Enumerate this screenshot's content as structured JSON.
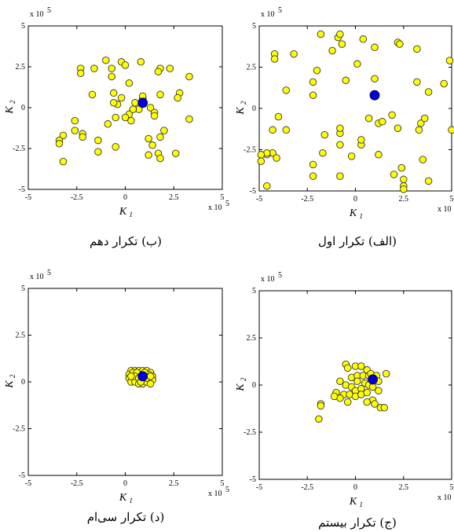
{
  "chart_data": [
    {
      "type": "scatter",
      "caption": "(الف) تکرار اول",
      "xlabel": "K",
      "xlabel_sub": "1",
      "ylabel": "K",
      "ylabel_sub": "2",
      "x_exponent_label": "x 10",
      "x_exponent_power": "5",
      "y_exponent_label": "x 10",
      "y_exponent_power": "5",
      "xlim": [
        -5,
        5
      ],
      "ylim": [
        -5,
        5
      ],
      "xticks": [
        "-5",
        "-2.5",
        "0",
        "2.5",
        "5"
      ],
      "yticks": [
        "5",
        "2.5",
        "0",
        "-2.5",
        "-5"
      ],
      "grid": false,
      "particle_color": "#ffff00",
      "best_color": "#0000dd",
      "best": [
        1.0,
        0.8
      ],
      "particles": [
        [
          -1.8,
          4.5
        ],
        [
          -0.9,
          4.3
        ],
        [
          -0.8,
          4.5
        ],
        [
          -0.7,
          3.9
        ],
        [
          0.4,
          4.2
        ],
        [
          1.0,
          3.7
        ],
        [
          2.2,
          4.0
        ],
        [
          2.3,
          3.9
        ],
        [
          3.2,
          3.6
        ],
        [
          4.9,
          2.9
        ],
        [
          -4.2,
          3.3
        ],
        [
          -4.2,
          3.0
        ],
        [
          -3.2,
          3.3
        ],
        [
          -1.2,
          3.5
        ],
        [
          -2.0,
          2.3
        ],
        [
          -2.2,
          1.6
        ],
        [
          -2.2,
          0.8
        ],
        [
          -3.6,
          1.1
        ],
        [
          -0.5,
          1.7
        ],
        [
          0.1,
          2.7
        ],
        [
          1.0,
          1.8
        ],
        [
          3.2,
          1.6
        ],
        [
          4.6,
          1.5
        ],
        [
          3.8,
          1.0
        ],
        [
          -4.0,
          -0.5
        ],
        [
          -3.6,
          -1.3
        ],
        [
          -4.3,
          -1.3
        ],
        [
          -1.6,
          -1.6
        ],
        [
          -0.8,
          -1.5
        ],
        [
          -0.8,
          -1.2
        ],
        [
          0.7,
          -0.6
        ],
        [
          1.2,
          -0.9
        ],
        [
          1.4,
          -0.8
        ],
        [
          3.4,
          -0.9
        ],
        [
          3.6,
          -0.6
        ],
        [
          3.3,
          -1.3
        ],
        [
          5.0,
          -1.3
        ],
        [
          2.2,
          -1.2
        ],
        [
          1.9,
          -0.4
        ],
        [
          -4.3,
          -2.7
        ],
        [
          -4.6,
          -2.8
        ],
        [
          -4.6,
          -2.7
        ],
        [
          -4.9,
          -2.8
        ],
        [
          -4.9,
          -3.2
        ],
        [
          -4.1,
          -3.0
        ],
        [
          -1.7,
          -2.7
        ],
        [
          -0.8,
          -2.2
        ],
        [
          -0.8,
          -4.1
        ],
        [
          -2.2,
          -3.4
        ],
        [
          -2.2,
          -4.1
        ],
        [
          0.3,
          -2.2
        ],
        [
          0.3,
          -1.9
        ],
        [
          -0.2,
          -2.9
        ],
        [
          2.0,
          -4.0
        ],
        [
          2.4,
          -3.6
        ],
        [
          2.5,
          -4.3
        ],
        [
          2.5,
          -4.7
        ],
        [
          2.5,
          -4.9
        ],
        [
          3.8,
          -4.4
        ],
        [
          -4.6,
          -4.7
        ],
        [
          3.5,
          -3.1
        ],
        [
          1.2,
          -2.8
        ]
      ]
    },
    {
      "type": "scatter",
      "caption": "(ب) تکرار دهم",
      "xlabel": "K",
      "xlabel_sub": "1",
      "ylabel": "K",
      "ylabel_sub": "2",
      "x_exponent_label": "x 10",
      "x_exponent_power": "5",
      "y_exponent_label": "x 10",
      "y_exponent_power": "5",
      "xlim": [
        -5,
        5
      ],
      "ylim": [
        -5,
        5
      ],
      "xticks": [
        "-5",
        "-2.5",
        "0",
        "2.5",
        "5"
      ],
      "yticks": [
        "5",
        "2.5",
        "0",
        "-2.5",
        "-5"
      ],
      "grid": false,
      "particle_color": "#ffff00",
      "best_color": "#0000dd",
      "best": [
        0.9,
        0.3
      ],
      "particles": [
        [
          -2.3,
          2.4
        ],
        [
          -2.3,
          2.1
        ],
        [
          -1.6,
          2.4
        ],
        [
          -1.0,
          2.9
        ],
        [
          -0.2,
          2.8
        ],
        [
          0.0,
          2.6
        ],
        [
          -0.7,
          2.4
        ],
        [
          0.8,
          2.8
        ],
        [
          1.8,
          2.4
        ],
        [
          1.7,
          2.2
        ],
        [
          2.3,
          2.4
        ],
        [
          3.3,
          1.9
        ],
        [
          -0.7,
          1.9
        ],
        [
          0.2,
          1.5
        ],
        [
          -0.6,
          0.9
        ],
        [
          -1.7,
          0.8
        ],
        [
          2.8,
          0.9
        ],
        [
          2.7,
          0.6
        ],
        [
          1.8,
          0.8
        ],
        [
          0.5,
          0.3
        ],
        [
          0.9,
          0.6
        ],
        [
          0.9,
          0.7
        ],
        [
          0.2,
          -0.4
        ],
        [
          0.3,
          -0.8
        ],
        [
          0.0,
          -0.6
        ],
        [
          -0.5,
          -0.6
        ],
        [
          0.7,
          -0.1
        ],
        [
          1.3,
          0.0
        ],
        [
          1.5,
          -0.3
        ],
        [
          1.5,
          -0.5
        ],
        [
          -0.4,
          0.2
        ],
        [
          -0.6,
          0.3
        ],
        [
          -0.2,
          0.6
        ],
        [
          -2.6,
          -0.8
        ],
        [
          -2.2,
          -1.6
        ],
        [
          -2.6,
          -1.4
        ],
        [
          -3.2,
          -1.7
        ],
        [
          -3.4,
          -2.0
        ],
        [
          -3.4,
          -2.2
        ],
        [
          -2.2,
          -1.8
        ],
        [
          -1.4,
          -2.0
        ],
        [
          -1.4,
          -2.7
        ],
        [
          -0.9,
          -1.0
        ],
        [
          -0.5,
          -2.4
        ],
        [
          1.2,
          -1.9
        ],
        [
          1.4,
          -2.3
        ],
        [
          1.2,
          -2.9
        ],
        [
          1.7,
          -2.8
        ],
        [
          1.8,
          -3.1
        ],
        [
          1.8,
          -1.8
        ],
        [
          2.6,
          -2.8
        ],
        [
          3.3,
          -0.7
        ],
        [
          -3.2,
          -3.3
        ],
        [
          0.4,
          -0.1
        ],
        [
          2.0,
          -1.4
        ]
      ]
    },
    {
      "type": "scatter",
      "caption": "(ج) تکرار بیستم",
      "xlabel": "K",
      "xlabel_sub": "1",
      "ylabel": "K",
      "ylabel_sub": "2",
      "x_exponent_label": "x 10",
      "x_exponent_power": "5",
      "y_exponent_label": "x 10",
      "y_exponent_power": "5",
      "xlim": [
        -5,
        5
      ],
      "ylim": [
        -5,
        5
      ],
      "xticks": [
        "-5",
        "-2.5",
        "0",
        "2.5",
        "5"
      ],
      "yticks": [
        "5",
        "2.5",
        "0",
        "-2.5",
        "-5"
      ],
      "grid": false,
      "particle_color": "#ffff00",
      "best_color": "#0000dd",
      "best": [
        0.9,
        0.3
      ],
      "particles": [
        [
          -0.5,
          1.1
        ],
        [
          -0.4,
          0.9
        ],
        [
          0.0,
          1.0
        ],
        [
          0.3,
          1.0
        ],
        [
          0.6,
          0.8
        ],
        [
          1.6,
          0.6
        ],
        [
          -0.2,
          0.4
        ],
        [
          0.1,
          0.5
        ],
        [
          0.4,
          0.5
        ],
        [
          0.7,
          0.5
        ],
        [
          0.8,
          0.6
        ],
        [
          1.1,
          0.5
        ],
        [
          1.2,
          0.2
        ],
        [
          -0.8,
          0.2
        ],
        [
          -0.5,
          0.0
        ],
        [
          -0.2,
          -0.1
        ],
        [
          0.0,
          -0.3
        ],
        [
          0.3,
          -0.2
        ],
        [
          0.5,
          0.1
        ],
        [
          0.7,
          0.0
        ],
        [
          0.9,
          -0.1
        ],
        [
          1.2,
          -0.3
        ],
        [
          -1.0,
          -0.4
        ],
        [
          -0.6,
          -0.5
        ],
        [
          -0.3,
          -0.5
        ],
        [
          0.0,
          -0.6
        ],
        [
          0.3,
          -0.5
        ],
        [
          0.6,
          -0.4
        ],
        [
          0.9,
          -0.8
        ],
        [
          -1.8,
          -1.0
        ],
        [
          -1.8,
          -1.1
        ],
        [
          -0.8,
          -0.7
        ],
        [
          -0.4,
          -0.9
        ],
        [
          0.6,
          -0.9
        ],
        [
          1.0,
          -1.0
        ],
        [
          1.3,
          -1.2
        ],
        [
          1.5,
          -1.2
        ],
        [
          -1.9,
          -1.8
        ],
        [
          -1.1,
          -0.6
        ],
        [
          0.1,
          0.2
        ]
      ]
    },
    {
      "type": "scatter",
      "caption": "(د) تکرار سی‌ام",
      "xlabel": "K",
      "xlabel_sub": "1",
      "ylabel": "K",
      "ylabel_sub": "2",
      "x_exponent_label": "x 10",
      "x_exponent_power": "5",
      "y_exponent_label": "x 10",
      "y_exponent_power": "5",
      "xlim": [
        -5,
        5
      ],
      "ylim": [
        -5,
        5
      ],
      "xticks": [
        "-5",
        "-2.5",
        "0",
        "2.5",
        "5"
      ],
      "yticks": [
        "5",
        "2.5",
        "0",
        "-2.5",
        "-5"
      ],
      "grid": false,
      "particle_color": "#ffff00",
      "best_color": "#0000dd",
      "best": [
        0.9,
        0.3
      ],
      "particles": [
        [
          0.3,
          0.6
        ],
        [
          0.5,
          0.6
        ],
        [
          0.7,
          0.6
        ],
        [
          0.9,
          0.6
        ],
        [
          1.1,
          0.6
        ],
        [
          1.3,
          0.5
        ],
        [
          0.2,
          0.4
        ],
        [
          0.4,
          0.4
        ],
        [
          0.6,
          0.3
        ],
        [
          0.8,
          0.4
        ],
        [
          1.0,
          0.4
        ],
        [
          1.2,
          0.4
        ],
        [
          1.4,
          0.3
        ],
        [
          0.2,
          0.2
        ],
        [
          0.4,
          0.2
        ],
        [
          0.6,
          0.1
        ],
        [
          0.8,
          0.1
        ],
        [
          1.0,
          0.1
        ],
        [
          1.2,
          0.2
        ],
        [
          1.4,
          0.1
        ],
        [
          0.3,
          0.0
        ],
        [
          0.5,
          0.0
        ],
        [
          0.7,
          -0.1
        ],
        [
          0.9,
          -0.1
        ],
        [
          1.1,
          0.0
        ],
        [
          1.3,
          -0.1
        ],
        [
          0.4,
          0.5
        ],
        [
          0.6,
          0.5
        ],
        [
          1.0,
          0.5
        ],
        [
          0.5,
          0.3
        ],
        [
          0.7,
          0.2
        ],
        [
          0.9,
          0.2
        ],
        [
          1.1,
          0.2
        ],
        [
          1.3,
          0.3
        ],
        [
          0.3,
          0.3
        ],
        [
          0.8,
          0.0
        ]
      ]
    }
  ]
}
